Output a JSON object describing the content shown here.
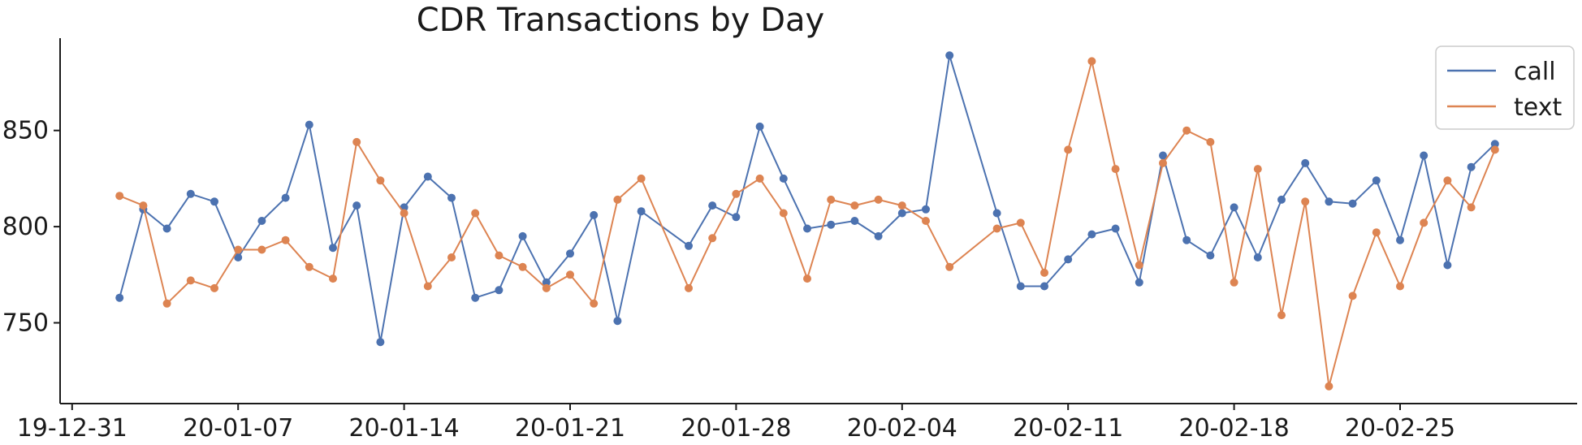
{
  "chart_data": {
    "type": "line",
    "title": "CDR Transactions by Day",
    "xlabel": "",
    "ylabel": "",
    "x_start": "2020-01-01",
    "x_ticks": [
      "19-12-31",
      "20-01-07",
      "20-01-14",
      "20-01-21",
      "20-01-28",
      "20-02-04",
      "20-02-11",
      "20-02-18",
      "20-02-25"
    ],
    "y_ticks": [
      750,
      800,
      850
    ],
    "ylim": [
      708,
      898
    ],
    "grid": false,
    "legend_position": "top-right",
    "series": [
      {
        "name": "call",
        "color": "#4c72b0",
        "points": [
          [
            "2020-01-02",
            763
          ],
          [
            "2020-01-03",
            809
          ],
          [
            "2020-01-04",
            799
          ],
          [
            "2020-01-05",
            817
          ],
          [
            "2020-01-06",
            813
          ],
          [
            "2020-01-07",
            784
          ],
          [
            "2020-01-08",
            803
          ],
          [
            "2020-01-09",
            815
          ],
          [
            "2020-01-10",
            853
          ],
          [
            "2020-01-11",
            789
          ],
          [
            "2020-01-12",
            811
          ],
          [
            "2020-01-13",
            740
          ],
          [
            "2020-01-14",
            810
          ],
          [
            "2020-01-15",
            826
          ],
          [
            "2020-01-16",
            815
          ],
          [
            "2020-01-17",
            763
          ],
          [
            "2020-01-18",
            767
          ],
          [
            "2020-01-19",
            795
          ],
          [
            "2020-01-20",
            771
          ],
          [
            "2020-01-21",
            786
          ],
          [
            "2020-01-22",
            806
          ],
          [
            "2020-01-23",
            751
          ],
          [
            "2020-01-24",
            808
          ],
          [
            "2020-01-26",
            790
          ],
          [
            "2020-01-27",
            811
          ],
          [
            "2020-01-28",
            805
          ],
          [
            "2020-01-29",
            852
          ],
          [
            "2020-01-30",
            825
          ],
          [
            "2020-01-31",
            799
          ],
          [
            "2020-02-01",
            801
          ],
          [
            "2020-02-02",
            803
          ],
          [
            "2020-02-03",
            795
          ],
          [
            "2020-02-04",
            807
          ],
          [
            "2020-02-05",
            809
          ],
          [
            "2020-02-06",
            889
          ],
          [
            "2020-02-08",
            807
          ],
          [
            "2020-02-09",
            769
          ],
          [
            "2020-02-10",
            769
          ],
          [
            "2020-02-11",
            783
          ],
          [
            "2020-02-12",
            796
          ],
          [
            "2020-02-13",
            799
          ],
          [
            "2020-02-14",
            771
          ],
          [
            "2020-02-15",
            837
          ],
          [
            "2020-02-16",
            793
          ],
          [
            "2020-02-17",
            785
          ],
          [
            "2020-02-18",
            810
          ],
          [
            "2020-02-19",
            784
          ],
          [
            "2020-02-20",
            814
          ],
          [
            "2020-02-21",
            833
          ],
          [
            "2020-02-22",
            813
          ],
          [
            "2020-02-23",
            812
          ],
          [
            "2020-02-24",
            824
          ],
          [
            "2020-02-25",
            793
          ],
          [
            "2020-02-26",
            837
          ],
          [
            "2020-02-27",
            780
          ],
          [
            "2020-02-28",
            831
          ],
          [
            "2020-02-29",
            843
          ]
        ]
      },
      {
        "name": "text",
        "color": "#dd8452",
        "points": [
          [
            "2020-01-02",
            816
          ],
          [
            "2020-01-03",
            811
          ],
          [
            "2020-01-04",
            760
          ],
          [
            "2020-01-05",
            772
          ],
          [
            "2020-01-06",
            768
          ],
          [
            "2020-01-07",
            788
          ],
          [
            "2020-01-08",
            788
          ],
          [
            "2020-01-09",
            793
          ],
          [
            "2020-01-10",
            779
          ],
          [
            "2020-01-11",
            773
          ],
          [
            "2020-01-12",
            844
          ],
          [
            "2020-01-13",
            824
          ],
          [
            "2020-01-14",
            807
          ],
          [
            "2020-01-15",
            769
          ],
          [
            "2020-01-16",
            784
          ],
          [
            "2020-01-17",
            807
          ],
          [
            "2020-01-18",
            785
          ],
          [
            "2020-01-19",
            779
          ],
          [
            "2020-01-20",
            768
          ],
          [
            "2020-01-21",
            775
          ],
          [
            "2020-01-22",
            760
          ],
          [
            "2020-01-23",
            814
          ],
          [
            "2020-01-24",
            825
          ],
          [
            "2020-01-26",
            768
          ],
          [
            "2020-01-27",
            794
          ],
          [
            "2020-01-28",
            817
          ],
          [
            "2020-01-29",
            825
          ],
          [
            "2020-01-30",
            807
          ],
          [
            "2020-01-31",
            773
          ],
          [
            "2020-02-01",
            814
          ],
          [
            "2020-02-02",
            811
          ],
          [
            "2020-02-03",
            814
          ],
          [
            "2020-02-04",
            811
          ],
          [
            "2020-02-05",
            803
          ],
          [
            "2020-02-06",
            779
          ],
          [
            "2020-02-08",
            799
          ],
          [
            "2020-02-09",
            802
          ],
          [
            "2020-02-10",
            776
          ],
          [
            "2020-02-11",
            840
          ],
          [
            "2020-02-12",
            886
          ],
          [
            "2020-02-13",
            830
          ],
          [
            "2020-02-14",
            780
          ],
          [
            "2020-02-15",
            833
          ],
          [
            "2020-02-16",
            850
          ],
          [
            "2020-02-17",
            844
          ],
          [
            "2020-02-18",
            771
          ],
          [
            "2020-02-19",
            830
          ],
          [
            "2020-02-20",
            754
          ],
          [
            "2020-02-21",
            813
          ],
          [
            "2020-02-22",
            717
          ],
          [
            "2020-02-23",
            764
          ],
          [
            "2020-02-24",
            797
          ],
          [
            "2020-02-25",
            769
          ],
          [
            "2020-02-26",
            802
          ],
          [
            "2020-02-27",
            824
          ],
          [
            "2020-02-28",
            810
          ],
          [
            "2020-02-29",
            840
          ]
        ]
      }
    ]
  }
}
